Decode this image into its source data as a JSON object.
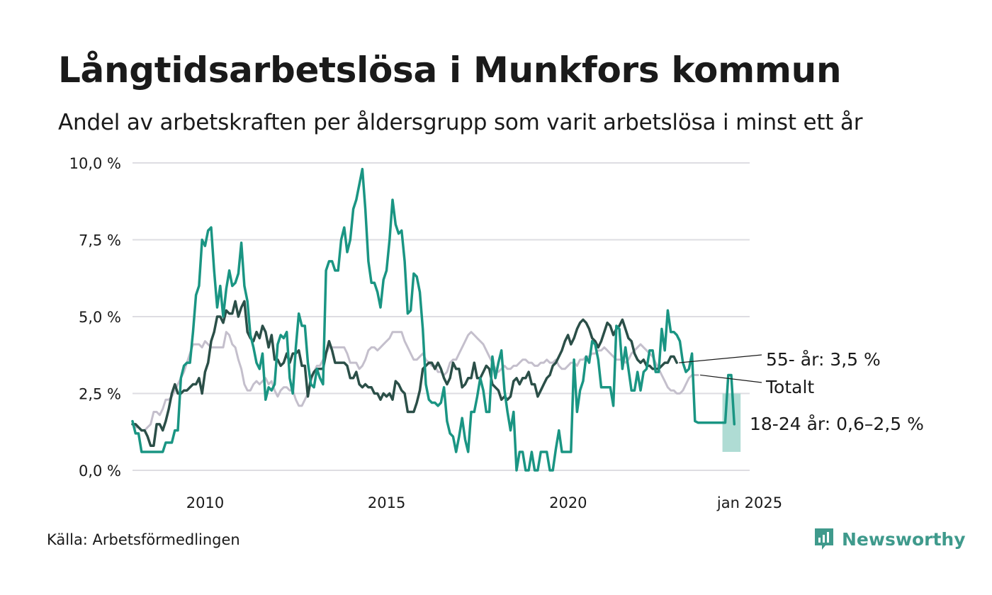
{
  "title": "Långtidsarbetslösa i Munkfors kommun",
  "subtitle": "Andel av arbetskraften per åldersgrupp som varit arbetslösa i minst ett år",
  "source": "Källa: Arbetsförmedlingen",
  "brand": "Newsworthy",
  "colors": {
    "youth": "#1a9583",
    "youth_band": "#a6d8cf",
    "age55": "#2b4f48",
    "total": "#c4bfcc",
    "grid": "#dedde2",
    "brand": "#3f9a8c"
  },
  "chart_data": {
    "type": "line",
    "x_start": 2008.0,
    "x_step": 0.0833,
    "ylim": [
      0,
      10
    ],
    "xlim": [
      2008.0,
      2025.0
    ],
    "yticks": [
      0,
      2.5,
      5,
      7.5,
      10
    ],
    "ytick_labels": [
      "0,0 %",
      "2,5 %",
      "5,0 %",
      "7,5 %",
      "10,0 %"
    ],
    "xticks": [
      2010,
      2015,
      2020,
      2025
    ],
    "xtick_labels": [
      "2010",
      "2015",
      "2020",
      "jan 2025"
    ],
    "grid": true,
    "series": [
      {
        "name": "Totalt",
        "end_label": "Totalt",
        "values": [
          1.5,
          1.4,
          1.4,
          1.3,
          1.3,
          1.4,
          1.5,
          1.9,
          1.9,
          1.8,
          2.0,
          2.3,
          2.3,
          2.4,
          2.6,
          2.8,
          3.0,
          3.2,
          3.5,
          3.8,
          4.1,
          4.1,
          4.1,
          4.0,
          4.2,
          4.1,
          4.0,
          4.0,
          4.0,
          4.0,
          4.0,
          4.5,
          4.4,
          4.1,
          4.0,
          3.6,
          3.3,
          2.8,
          2.6,
          2.6,
          2.8,
          2.9,
          2.8,
          2.9,
          3.0,
          2.8,
          2.9,
          2.6,
          2.4,
          2.6,
          2.7,
          2.7,
          2.6,
          2.6,
          2.3,
          2.1,
          2.1,
          2.3,
          2.5,
          2.9,
          3.2,
          3.4,
          3.4,
          3.6,
          3.8,
          4.0,
          4.0,
          4.0,
          4.0,
          4.0,
          4.0,
          3.8,
          3.5,
          3.5,
          3.5,
          3.3,
          3.4,
          3.6,
          3.9,
          4.0,
          4.0,
          3.9,
          4.0,
          4.1,
          4.2,
          4.3,
          4.5,
          4.5,
          4.5,
          4.5,
          4.2,
          4.0,
          3.8,
          3.6,
          3.6,
          3.7,
          3.8,
          3.6,
          3.5,
          3.4,
          3.4,
          3.2,
          3.2,
          3.1,
          3.2,
          3.5,
          3.6,
          3.6,
          3.8,
          4.0,
          4.2,
          4.4,
          4.5,
          4.4,
          4.3,
          4.2,
          4.1,
          3.9,
          3.7,
          3.5,
          3.3,
          3.2,
          3.3,
          3.4,
          3.3,
          3.3,
          3.4,
          3.4,
          3.5,
          3.6,
          3.6,
          3.5,
          3.5,
          3.4,
          3.4,
          3.5,
          3.5,
          3.6,
          3.5,
          3.5,
          3.6,
          3.4,
          3.3,
          3.3,
          3.4,
          3.5,
          3.5,
          3.4,
          3.6,
          3.6,
          3.7,
          3.7,
          3.8,
          3.8,
          3.9,
          3.9,
          4.0,
          3.9,
          3.8,
          3.7,
          3.6,
          3.6,
          3.6,
          3.5,
          3.6,
          3.8,
          3.9,
          4.0,
          4.1,
          4.0,
          3.9,
          3.8,
          3.7,
          3.5,
          3.3,
          3.1,
          2.9,
          2.7,
          2.6,
          2.6,
          2.5,
          2.5,
          2.6,
          2.8,
          3.0,
          3.1,
          3.1,
          3.1
        ]
      },
      {
        "name": "55- år",
        "end_label": "55- år: 3,5 %",
        "values": [
          1.5,
          1.5,
          1.4,
          1.3,
          1.3,
          1.1,
          0.8,
          0.8,
          1.5,
          1.5,
          1.3,
          1.6,
          2.0,
          2.5,
          2.8,
          2.5,
          2.5,
          2.6,
          2.6,
          2.7,
          2.8,
          2.8,
          3.0,
          2.5,
          3.2,
          3.5,
          4.2,
          4.5,
          5.0,
          5.0,
          4.8,
          5.2,
          5.1,
          5.1,
          5.5,
          5.0,
          5.3,
          5.5,
          4.5,
          4.3,
          4.2,
          4.5,
          4.3,
          4.7,
          4.5,
          4.0,
          4.4,
          3.6,
          3.6,
          3.4,
          3.5,
          3.8,
          3.5,
          3.8,
          3.8,
          3.9,
          3.4,
          3.4,
          2.4,
          3.0,
          3.2,
          3.3,
          3.3,
          3.3,
          3.8,
          4.2,
          3.9,
          3.5,
          3.5,
          3.5,
          3.5,
          3.4,
          3.0,
          3.0,
          3.2,
          2.8,
          2.7,
          2.8,
          2.7,
          2.7,
          2.5,
          2.5,
          2.3,
          2.5,
          2.4,
          2.5,
          2.3,
          2.9,
          2.8,
          2.6,
          2.5,
          1.9,
          1.9,
          1.9,
          2.2,
          2.6,
          3.3,
          3.4,
          3.5,
          3.5,
          3.3,
          3.5,
          3.3,
          3.0,
          2.8,
          3.0,
          3.5,
          3.3,
          3.3,
          2.7,
          2.8,
          3.0,
          3.0,
          3.5,
          3.0,
          3.0,
          3.2,
          3.4,
          3.3,
          2.8,
          2.7,
          2.6,
          2.3,
          2.4,
          2.3,
          2.4,
          2.9,
          3.0,
          2.8,
          3.0,
          3.0,
          3.2,
          2.8,
          2.8,
          2.4,
          2.6,
          2.8,
          3.0,
          3.1,
          3.4,
          3.5,
          3.7,
          3.9,
          4.2,
          4.4,
          4.1,
          4.3,
          4.6,
          4.8,
          4.9,
          4.8,
          4.6,
          4.3,
          4.2,
          4.0,
          4.2,
          4.5,
          4.8,
          4.7,
          4.4,
          4.6,
          4.7,
          4.9,
          4.6,
          4.3,
          4.2,
          3.8,
          3.6,
          3.5,
          3.6,
          3.4,
          3.4,
          3.3,
          3.3,
          3.3,
          3.4,
          3.5,
          3.5,
          3.7,
          3.7,
          3.5
        ]
      },
      {
        "name": "18-24 år",
        "end_label": "18-24 år: 0,6–2,5 %",
        "values": [
          1.6,
          1.2,
          1.2,
          0.6,
          0.6,
          0.6,
          0.6,
          0.6,
          0.6,
          0.6,
          0.6,
          0.9,
          0.9,
          0.9,
          1.3,
          1.3,
          3.0,
          3.4,
          3.5,
          3.5,
          4.5,
          5.7,
          6.0,
          7.5,
          7.3,
          7.8,
          7.9,
          6.5,
          5.3,
          6.0,
          5.0,
          5.9,
          6.5,
          6.0,
          6.1,
          6.4,
          7.4,
          6.0,
          5.5,
          4.4,
          4.0,
          3.5,
          3.3,
          3.8,
          2.3,
          2.7,
          2.6,
          2.8,
          4.1,
          4.4,
          4.3,
          4.5,
          3.0,
          2.5,
          4.0,
          5.1,
          4.7,
          4.7,
          3.5,
          2.8,
          2.7,
          3.3,
          3.0,
          2.8,
          6.5,
          6.8,
          6.8,
          6.5,
          6.5,
          7.5,
          7.9,
          7.1,
          7.5,
          8.5,
          8.8,
          9.3,
          9.8,
          8.5,
          6.8,
          6.1,
          6.1,
          5.8,
          5.3,
          6.2,
          6.5,
          7.5,
          8.8,
          8.0,
          7.7,
          7.8,
          6.8,
          5.1,
          5.2,
          6.4,
          6.3,
          5.8,
          4.6,
          2.8,
          2.3,
          2.2,
          2.2,
          2.1,
          2.2,
          2.7,
          1.6,
          1.2,
          1.1,
          0.6,
          1.1,
          1.7,
          1.0,
          0.6,
          1.9,
          1.9,
          2.4,
          3.0,
          2.6,
          1.9,
          1.9,
          3.7,
          3.0,
          3.5,
          3.9,
          2.6,
          1.9,
          1.3,
          1.9,
          0.0,
          0.6,
          0.6,
          0.0,
          0.0,
          0.6,
          0.0,
          0.0,
          0.6,
          0.6,
          0.6,
          0.0,
          0.0,
          0.7,
          1.3,
          0.6,
          0.6,
          0.6,
          0.6,
          3.6,
          1.9,
          2.6,
          2.9,
          3.7,
          3.5,
          4.2,
          4.1,
          3.6,
          2.7,
          2.7,
          2.7,
          2.7,
          2.1,
          4.7,
          4.6,
          3.3,
          4.0,
          3.3,
          2.6,
          2.6,
          3.2,
          2.6,
          3.2,
          3.3,
          3.9,
          3.9,
          3.2,
          3.2,
          4.6,
          3.9,
          5.2,
          4.5,
          4.5,
          4.4,
          4.2,
          3.5,
          3.2,
          3.3,
          3.8,
          1.6,
          1.55,
          1.55,
          1.55,
          1.55,
          1.55,
          1.55,
          1.55,
          1.55,
          1.55,
          1.55,
          3.1,
          3.1,
          1.5
        ],
        "range_band": {
          "x_from": 2024.25,
          "x_to": 2024.75,
          "low": 0.6,
          "high": 2.5
        }
      }
    ]
  }
}
